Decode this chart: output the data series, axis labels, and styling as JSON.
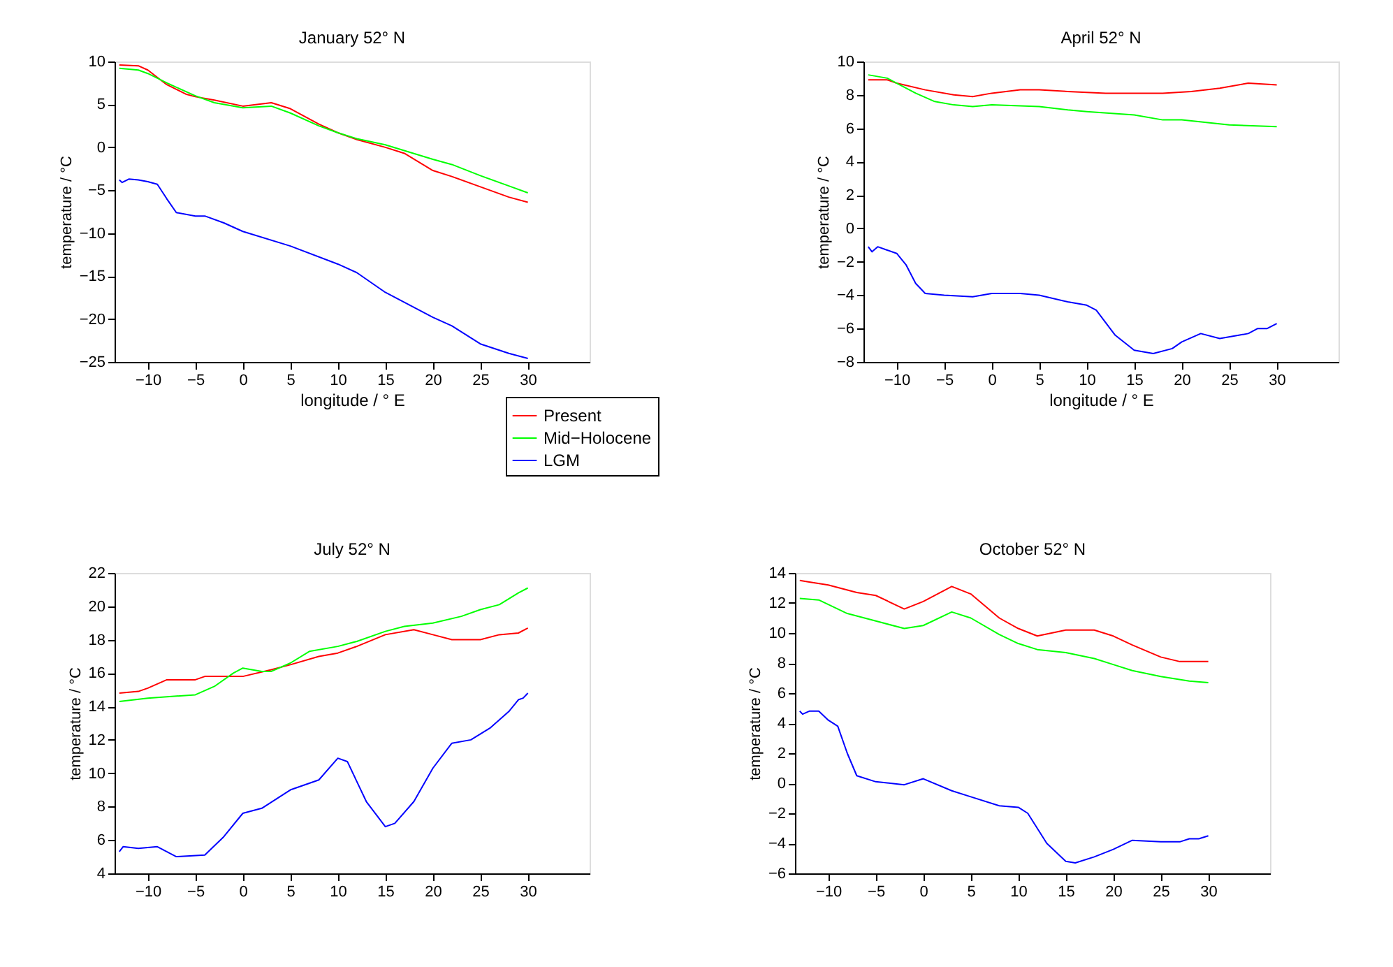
{
  "chart_data": [
    {
      "type": "line",
      "title": "January 52° N",
      "xlabel": "longitude / ° E",
      "ylabel": "temperature / °C",
      "xlim": [
        -13.5,
        36.5
      ],
      "xticks": [
        -10,
        -5,
        0,
        5,
        10,
        15,
        20,
        25,
        30
      ],
      "ylim": [
        -25,
        10
      ],
      "yticks": [
        -25,
        -20,
        -15,
        -10,
        -5,
        0,
        5,
        10
      ],
      "grid": false,
      "legend": "bottom right",
      "line_style": "solid",
      "marker": "none",
      "series": [
        {
          "name": "Present",
          "color": "#ff0000",
          "x": [
            -13,
            -11,
            -10,
            -8,
            -6,
            -5,
            -3,
            0,
            3,
            5,
            8,
            10,
            12,
            15,
            17,
            20,
            22,
            25,
            28,
            30
          ],
          "values": [
            9.6,
            9.5,
            9.0,
            7.3,
            6.2,
            5.9,
            5.5,
            4.8,
            5.2,
            4.5,
            2.7,
            1.7,
            0.9,
            0.0,
            -0.7,
            -2.7,
            -3.4,
            -4.6,
            -5.8,
            -6.4
          ]
        },
        {
          "name": "Mid−Holocene",
          "color": "#00ff00",
          "x": [
            -13,
            -11,
            -10,
            -8,
            -5,
            -3,
            0,
            3,
            5,
            8,
            10,
            12,
            15,
            20,
            22,
            25,
            28,
            30
          ],
          "values": [
            9.2,
            9.0,
            8.6,
            7.5,
            6.0,
            5.2,
            4.6,
            4.8,
            4.0,
            2.5,
            1.7,
            1.0,
            0.3,
            -1.4,
            -2.0,
            -3.3,
            -4.5,
            -5.3
          ]
        },
        {
          "name": "LGM",
          "color": "#0000ff",
          "x": [
            -13,
            -12.7,
            -12,
            -11,
            -10,
            -9,
            -8,
            -7,
            -5,
            -4,
            -2,
            0,
            5,
            10,
            12,
            15,
            20,
            22,
            25,
            28,
            30
          ],
          "values": [
            -3.8,
            -4.1,
            -3.7,
            -3.8,
            -4.0,
            -4.3,
            -6.0,
            -7.6,
            -8.0,
            -8.0,
            -8.8,
            -9.8,
            -11.5,
            -13.6,
            -14.6,
            -16.9,
            -19.8,
            -20.8,
            -22.9,
            -24.0,
            -24.6
          ]
        }
      ]
    },
    {
      "type": "line",
      "title": "April 52° N",
      "xlabel": "longitude / ° E",
      "ylabel": "temperature / °C",
      "xlim": [
        -13.5,
        36.5
      ],
      "xticks": [
        -10,
        -5,
        0,
        5,
        10,
        15,
        20,
        25,
        30
      ],
      "ylim": [
        -8,
        10
      ],
      "yticks": [
        -8,
        -6,
        -4,
        -2,
        0,
        2,
        4,
        6,
        8,
        10
      ],
      "grid": false,
      "line_style": "solid",
      "marker": "none",
      "series": [
        {
          "color": "#ff0000",
          "x": [
            -13,
            -11,
            -10,
            -7,
            -4,
            -2,
            0,
            3,
            5,
            8,
            12,
            15,
            18,
            21,
            24,
            27,
            30
          ],
          "values": [
            8.9,
            8.9,
            8.7,
            8.3,
            8.0,
            7.9,
            8.1,
            8.3,
            8.3,
            8.2,
            8.1,
            8.1,
            8.1,
            8.2,
            8.4,
            8.7,
            8.6
          ]
        },
        {
          "color": "#00ff00",
          "x": [
            -13,
            -11,
            -10,
            -8,
            -6,
            -4,
            -2,
            0,
            5,
            8,
            10,
            15,
            18,
            20,
            25,
            30
          ],
          "values": [
            9.2,
            9.0,
            8.7,
            8.1,
            7.6,
            7.4,
            7.3,
            7.4,
            7.3,
            7.1,
            7.0,
            6.8,
            6.5,
            6.5,
            6.2,
            6.1
          ]
        },
        {
          "color": "#0000ff",
          "x": [
            -13,
            -12.6,
            -12,
            -11,
            -10,
            -9,
            -8,
            -7,
            -5,
            -2,
            0,
            3,
            5,
            8,
            10,
            11,
            13,
            15,
            17,
            19,
            20,
            22,
            24,
            26,
            27,
            28,
            29,
            30
          ],
          "values": [
            -1.1,
            -1.4,
            -1.1,
            -1.3,
            -1.5,
            -2.2,
            -3.3,
            -3.9,
            -4.0,
            -4.1,
            -3.9,
            -3.9,
            -4.0,
            -4.4,
            -4.6,
            -4.9,
            -6.4,
            -7.3,
            -7.5,
            -7.2,
            -6.8,
            -6.3,
            -6.6,
            -6.4,
            -6.3,
            -6.0,
            -6.0,
            -5.7
          ]
        }
      ]
    },
    {
      "type": "line",
      "title": "July 52° N",
      "ylabel": "temperature / °C",
      "xlim": [
        -13.5,
        36.5
      ],
      "xticks": [
        -10,
        -5,
        0,
        5,
        10,
        15,
        20,
        25,
        30
      ],
      "ylim": [
        4,
        22
      ],
      "yticks": [
        4,
        6,
        8,
        10,
        12,
        14,
        16,
        18,
        20,
        22
      ],
      "grid": false,
      "line_style": "solid",
      "marker": "none",
      "series": [
        {
          "color": "#ff0000",
          "x": [
            -13,
            -11,
            -10,
            -8,
            -5,
            -4,
            0,
            3,
            5,
            8,
            10,
            12,
            15,
            18,
            20,
            22,
            25,
            27,
            29,
            30
          ],
          "values": [
            14.8,
            14.9,
            15.1,
            15.6,
            15.6,
            15.8,
            15.8,
            16.2,
            16.5,
            17.0,
            17.2,
            17.6,
            18.3,
            18.6,
            18.3,
            18.0,
            18.0,
            18.3,
            18.4,
            18.7
          ]
        },
        {
          "color": "#00ff00",
          "x": [
            -13,
            -10,
            -5,
            -3,
            -1,
            0,
            2,
            3,
            5,
            7,
            10,
            12,
            15,
            17,
            20,
            23,
            25,
            27,
            29,
            30
          ],
          "values": [
            14.3,
            14.5,
            14.7,
            15.2,
            16.0,
            16.3,
            16.1,
            16.1,
            16.6,
            17.3,
            17.6,
            17.9,
            18.5,
            18.8,
            19.0,
            19.4,
            19.8,
            20.1,
            20.8,
            21.1
          ]
        },
        {
          "color": "#0000ff",
          "x": [
            -13,
            -12.6,
            -11,
            -9,
            -7,
            -4,
            -2,
            0,
            2,
            5,
            8,
            10,
            11,
            13,
            15,
            16,
            18,
            20,
            22,
            24,
            26,
            28,
            29,
            29.5,
            30
          ],
          "values": [
            5.3,
            5.6,
            5.5,
            5.6,
            5.0,
            5.1,
            6.2,
            7.6,
            7.9,
            9.0,
            9.6,
            10.9,
            10.7,
            8.3,
            6.8,
            7.0,
            8.3,
            10.3,
            11.8,
            12.0,
            12.7,
            13.7,
            14.4,
            14.5,
            14.8
          ]
        }
      ]
    },
    {
      "type": "line",
      "title": "October 52° N",
      "ylabel": "temperature / °C",
      "xlim": [
        -13.5,
        36.5
      ],
      "xticks": [
        -10,
        -5,
        0,
        5,
        10,
        15,
        20,
        25,
        30
      ],
      "ylim": [
        -6,
        14
      ],
      "yticks": [
        -6,
        -4,
        -2,
        0,
        2,
        4,
        6,
        8,
        10,
        12,
        14
      ],
      "grid": false,
      "line_style": "solid",
      "marker": "none",
      "series": [
        {
          "color": "#ff0000",
          "x": [
            -13,
            -12,
            -10,
            -7,
            -5,
            -2,
            0,
            3,
            5,
            8,
            10,
            12,
            15,
            18,
            20,
            22,
            25,
            27,
            30
          ],
          "values": [
            13.5,
            13.4,
            13.2,
            12.7,
            12.5,
            11.6,
            12.1,
            13.1,
            12.6,
            11.0,
            10.3,
            9.8,
            10.2,
            10.2,
            9.8,
            9.2,
            8.4,
            8.1,
            8.1
          ]
        },
        {
          "color": "#00ff00",
          "x": [
            -13,
            -11,
            -8,
            -5,
            -2,
            0,
            3,
            5,
            8,
            10,
            12,
            15,
            18,
            20,
            22,
            25,
            28,
            30
          ],
          "values": [
            12.3,
            12.2,
            11.3,
            10.8,
            10.3,
            10.5,
            11.4,
            11.0,
            9.9,
            9.3,
            8.9,
            8.7,
            8.3,
            7.9,
            7.5,
            7.1,
            6.8,
            6.7
          ]
        },
        {
          "color": "#0000ff",
          "x": [
            -13,
            -12.7,
            -12,
            -11,
            -10,
            -9,
            -8,
            -7,
            -5,
            -2,
            0,
            3,
            5,
            8,
            10,
            11,
            13,
            15,
            16,
            18,
            20,
            22,
            25,
            27,
            28,
            29,
            30
          ],
          "values": [
            4.8,
            4.6,
            4.8,
            4.8,
            4.2,
            3.8,
            2.0,
            0.5,
            0.1,
            -0.1,
            0.3,
            -0.5,
            -0.9,
            -1.5,
            -1.6,
            -2.0,
            -4.0,
            -5.2,
            -5.3,
            -4.9,
            -4.4,
            -3.8,
            -3.9,
            -3.9,
            -3.7,
            -3.7,
            -3.5
          ]
        }
      ]
    }
  ]
}
